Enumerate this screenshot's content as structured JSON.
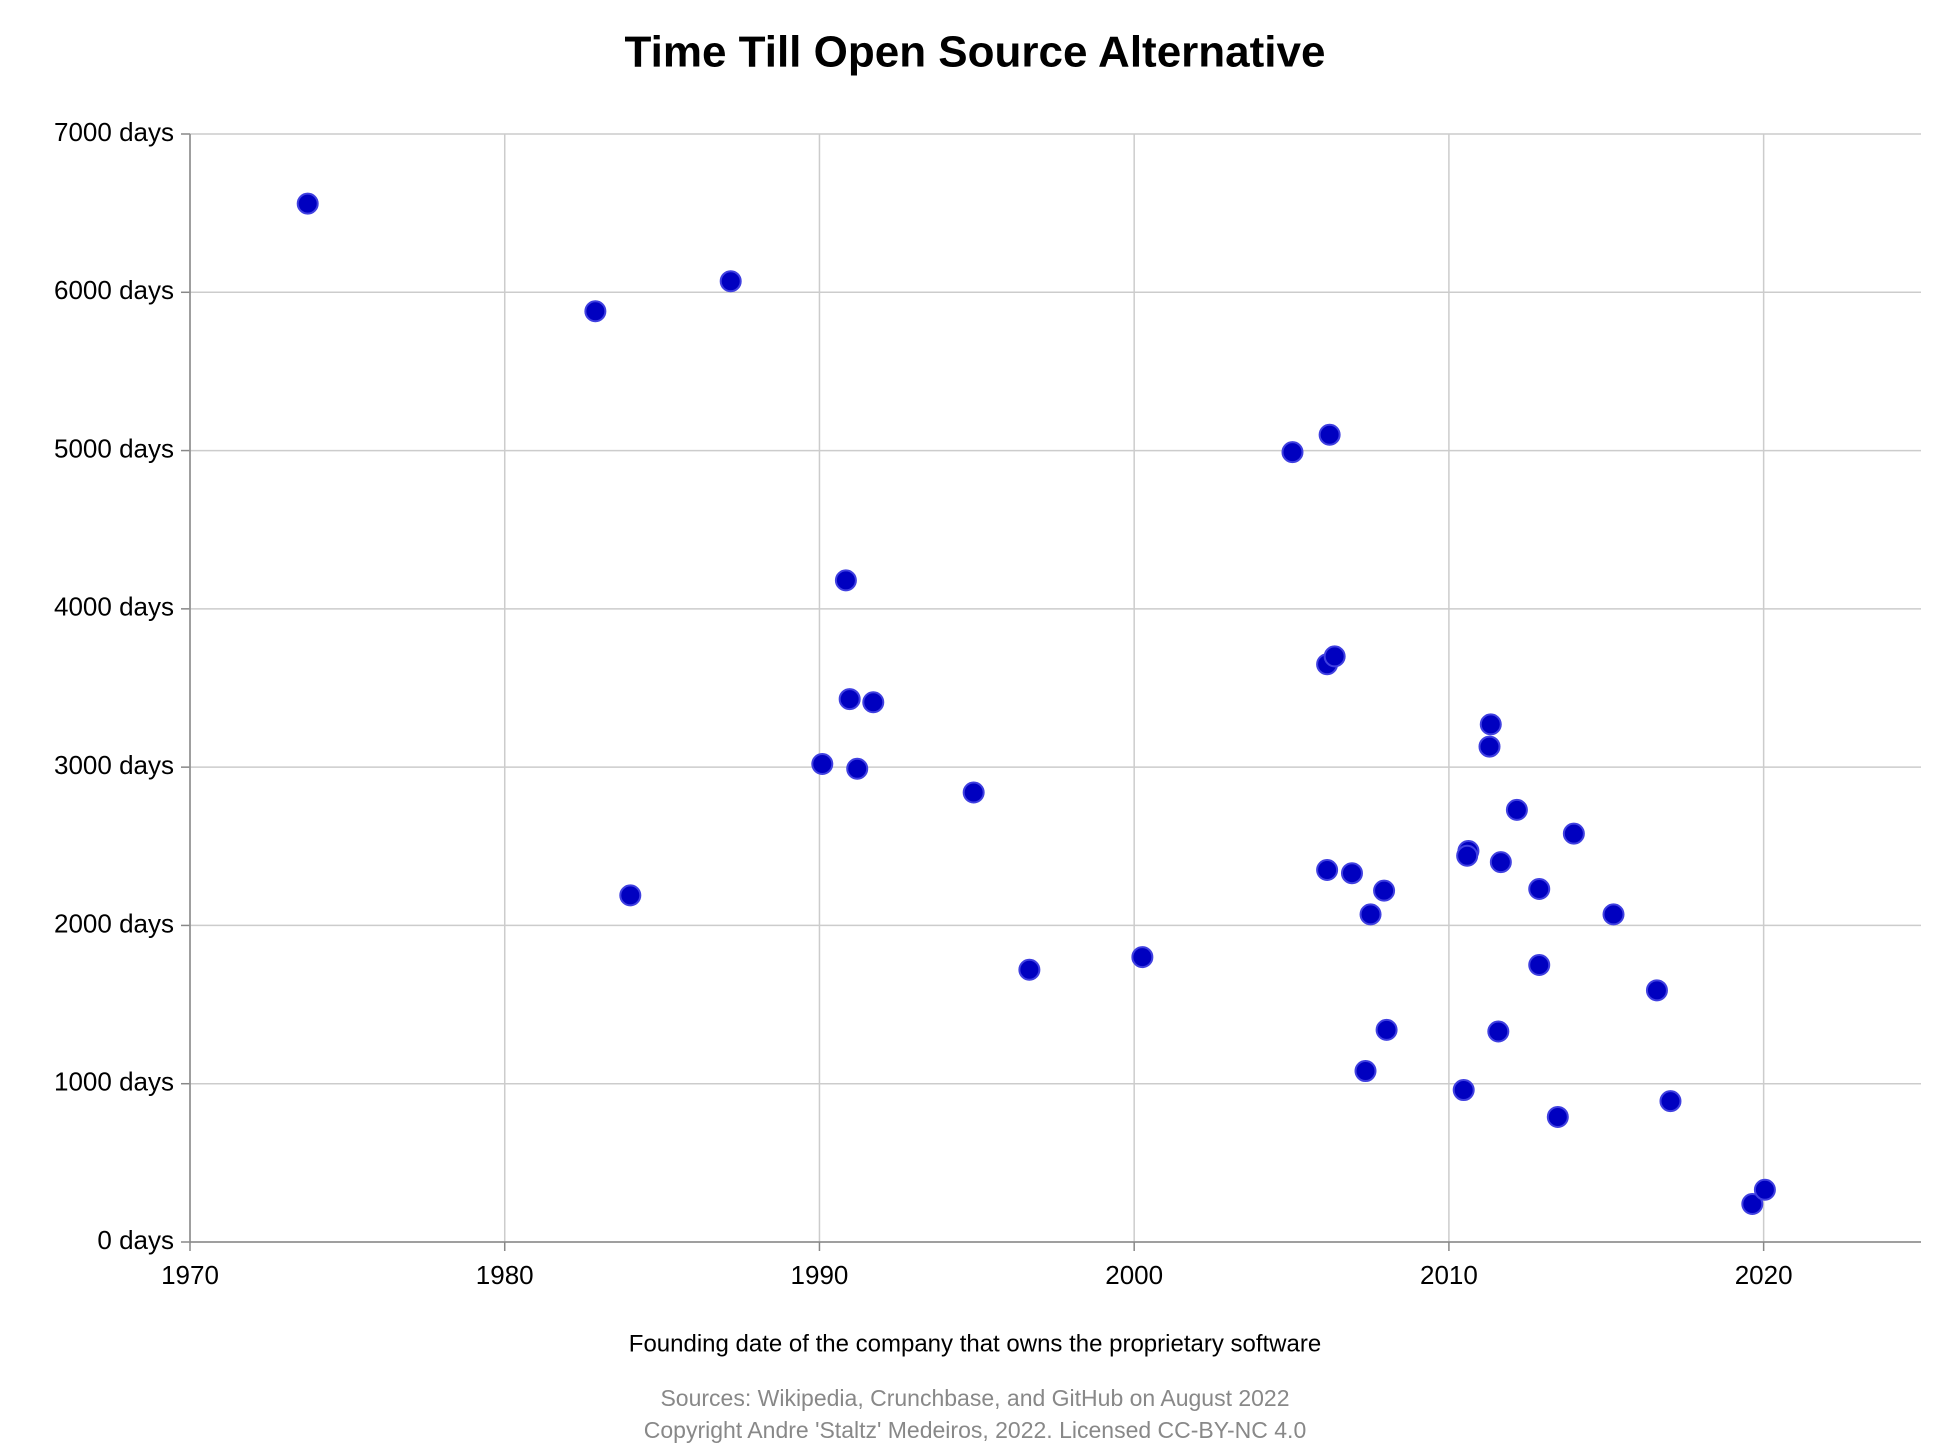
{
  "chart_data": {
    "type": "scatter",
    "title": "Time Till Open Source Alternative",
    "x_label": "Founding date of the company that owns the proprietary software",
    "sources": [
      "Sources: Wikipedia, Crunchbase, and GitHub on August 2022",
      "Copyright Andre 'Staltz' Medeiros, 2022. Licensed CC-BY-NC 4.0"
    ],
    "color": "#0000c0",
    "grid": true,
    "xlim": [
      1970,
      2025
    ],
    "xticks": [
      1970,
      1980,
      1990,
      2000,
      2010,
      2020
    ],
    "ylim": [
      0,
      7000
    ],
    "yticks": [
      {
        "value": 0,
        "label": "0 days"
      },
      {
        "value": 1000,
        "label": "1000 days"
      },
      {
        "value": 2000,
        "label": "2000 days"
      },
      {
        "value": 3000,
        "label": "3000 days"
      },
      {
        "value": 4000,
        "label": "4000 days"
      },
      {
        "value": 5000,
        "label": "5000 days"
      },
      {
        "value": 6000,
        "label": "6000 days"
      },
      {
        "value": 7000,
        "label": "7000 days"
      }
    ],
    "x": [
      1973.74,
      1982.88,
      1987.18,
      1983.99,
      1990.84,
      1990.96,
      1991.71,
      1990.09,
      1991.2,
      1994.9,
      1996.67,
      2000.26,
      2005.03,
      2006.21,
      2006.13,
      2006.37,
      2006.13,
      2006.92,
      2007.94,
      2007.51,
      2008.02,
      2007.35,
      2010.47,
      2010.62,
      2010.58,
      2011.33,
      2011.29,
      2011.65,
      2012.16,
      2012.87,
      2012.87,
      2011.57,
      2013.46,
      2013.97,
      2015.23,
      2016.61,
      2017.04,
      2019.64,
      2020.04
    ],
    "values": [
      6560,
      5880,
      6070,
      2190,
      4180,
      3430,
      3410,
      3020,
      2990,
      2840,
      1720,
      1800,
      4990,
      5100,
      3650,
      3700,
      2350,
      2330,
      2220,
      2070,
      1340,
      1080,
      960,
      2470,
      2440,
      3270,
      3130,
      2400,
      2730,
      2230,
      1750,
      1330,
      790,
      2580,
      2070,
      1590,
      890,
      240,
      330
    ]
  }
}
